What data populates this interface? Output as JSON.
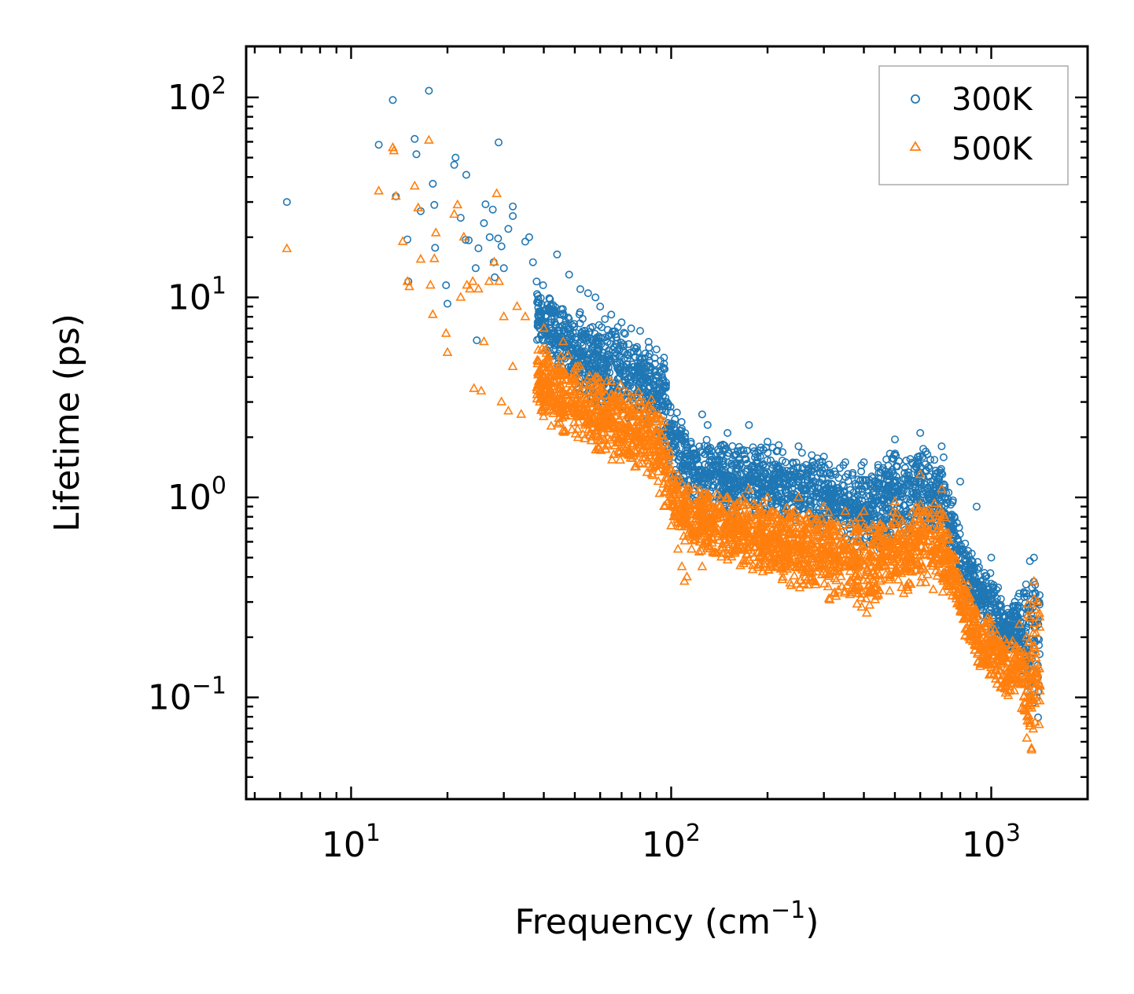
{
  "chart_data": {
    "type": "scatter",
    "title": "",
    "xlabel": "Frequency (cm",
    "xlabel_sup": "−1",
    "xlabel_close": ")",
    "ylabel": "Lifetime (ps)",
    "xscale": "log",
    "yscale": "log",
    "xlim": [
      4.7,
      2000
    ],
    "ylim": [
      0.031,
      180
    ],
    "grid": false,
    "legend_position": "top-right",
    "x_ticks": [
      {
        "value": 10,
        "base": "10",
        "exp": "1"
      },
      {
        "value": 100,
        "base": "10",
        "exp": "2"
      },
      {
        "value": 1000,
        "base": "10",
        "exp": "3"
      }
    ],
    "y_ticks": [
      {
        "value": 0.1,
        "base": "10",
        "exp": "−1"
      },
      {
        "value": 1,
        "base": "10",
        "exp": "0"
      },
      {
        "value": 10,
        "base": "10",
        "exp": "1"
      },
      {
        "value": 100,
        "base": "10",
        "exp": "2"
      }
    ],
    "series": [
      {
        "name": "300K",
        "marker": "circle",
        "color": "#1f77b4",
        "outliers": [
          [
            6.3,
            30
          ],
          [
            12.2,
            58
          ],
          [
            13.5,
            97
          ],
          [
            13.8,
            32
          ],
          [
            15,
            19.5
          ],
          [
            15.1,
            12
          ],
          [
            15.8,
            62
          ],
          [
            16,
            52
          ],
          [
            16.5,
            27
          ],
          [
            17.5,
            108
          ],
          [
            18,
            37
          ],
          [
            18.2,
            29
          ],
          [
            18.3,
            17.7
          ],
          [
            19.8,
            11.5
          ],
          [
            20,
            9.3
          ],
          [
            21,
            46
          ],
          [
            21.2,
            50
          ],
          [
            22,
            25
          ],
          [
            22.8,
            19.4
          ],
          [
            22.9,
            41
          ],
          [
            23.3,
            19.3
          ],
          [
            24.5,
            14
          ],
          [
            24.7,
            6.1
          ],
          [
            25,
            17.6
          ],
          [
            26,
            23.5
          ],
          [
            26.3,
            29.2
          ],
          [
            27.1,
            20
          ],
          [
            27.7,
            27.5
          ],
          [
            27.9,
            15
          ],
          [
            28.1,
            12.6
          ],
          [
            28.8,
            19.7
          ],
          [
            28.9,
            59.6
          ],
          [
            29.5,
            18
          ],
          [
            30,
            14
          ],
          [
            31,
            22
          ],
          [
            32,
            28.5
          ],
          [
            32,
            25.5
          ],
          [
            35,
            19
          ],
          [
            36,
            20
          ],
          [
            37,
            15
          ],
          [
            38,
            12
          ],
          [
            39.8,
            11.5
          ],
          [
            44,
            16.4
          ],
          [
            48,
            13
          ],
          [
            52,
            11
          ],
          [
            55,
            10.5
          ],
          [
            58,
            10
          ],
          [
            60,
            9
          ],
          [
            65,
            8.2
          ],
          [
            70,
            7.5
          ],
          [
            75,
            7
          ],
          [
            80,
            6.8
          ],
          [
            85,
            6
          ],
          [
            90,
            5.5
          ],
          [
            95,
            5
          ],
          [
            125,
            2.6
          ],
          [
            130,
            2.3
          ],
          [
            150,
            2.1
          ],
          [
            175,
            2.3
          ],
          [
            200,
            1.9
          ],
          [
            250,
            1.8
          ],
          [
            300,
            1.6
          ],
          [
            350,
            1.5
          ],
          [
            400,
            1.5
          ],
          [
            500,
            1.95
          ],
          [
            600,
            2.1
          ],
          [
            700,
            1.8
          ],
          [
            800,
            1.2
          ],
          [
            900,
            0.9
          ],
          [
            1000,
            0.5
          ],
          [
            1320,
            0.48
          ],
          [
            1360,
            0.5
          ],
          [
            1400,
            0.3
          ]
        ],
        "envelope": [
          [
            38,
            6,
            12
          ],
          [
            45,
            4,
            10
          ],
          [
            55,
            2.8,
            8.5
          ],
          [
            65,
            2.5,
            7.8
          ],
          [
            75,
            2.4,
            7
          ],
          [
            85,
            2.2,
            6
          ],
          [
            95,
            1.6,
            5
          ],
          [
            100,
            1.3,
            3.5
          ],
          [
            110,
            0.9,
            2.2
          ],
          [
            130,
            0.8,
            2.1
          ],
          [
            160,
            0.75,
            2
          ],
          [
            200,
            0.75,
            1.9
          ],
          [
            250,
            0.75,
            1.8
          ],
          [
            300,
            0.65,
            1.6
          ],
          [
            350,
            0.6,
            1.5
          ],
          [
            400,
            0.45,
            1.5
          ],
          [
            450,
            0.55,
            1.6
          ],
          [
            500,
            0.6,
            1.8
          ],
          [
            550,
            0.6,
            1.6
          ],
          [
            600,
            0.7,
            2.1
          ],
          [
            650,
            0.6,
            1.7
          ],
          [
            700,
            0.55,
            1.8
          ],
          [
            760,
            0.45,
            1
          ],
          [
            800,
            0.35,
            0.7
          ],
          [
            900,
            0.25,
            0.5
          ],
          [
            1000,
            0.2,
            0.45
          ],
          [
            1100,
            0.16,
            0.3
          ],
          [
            1180,
            0.18,
            0.31
          ],
          [
            1300,
            0.07,
            0.46
          ],
          [
            1380,
            0.075,
            0.48
          ],
          [
            1420,
            0.07,
            0.4
          ]
        ]
      },
      {
        "name": "500K",
        "marker": "triangle",
        "color": "#ff7f0e",
        "outliers": [
          [
            6.3,
            17.5
          ],
          [
            12.2,
            34
          ],
          [
            13.5,
            56
          ],
          [
            13.6,
            54
          ],
          [
            13.8,
            32
          ],
          [
            14.5,
            19
          ],
          [
            15,
            12
          ],
          [
            15.2,
            11.3
          ],
          [
            15.8,
            36
          ],
          [
            16.2,
            28
          ],
          [
            16.5,
            15.5
          ],
          [
            17.5,
            61
          ],
          [
            17.7,
            11.5
          ],
          [
            18,
            8.2
          ],
          [
            18.2,
            15.6
          ],
          [
            18.4,
            21
          ],
          [
            19.8,
            6.6
          ],
          [
            20,
            5.3
          ],
          [
            21,
            26
          ],
          [
            21.5,
            29
          ],
          [
            22,
            10
          ],
          [
            22.5,
            20
          ],
          [
            23,
            11.5
          ],
          [
            23.5,
            11
          ],
          [
            24,
            12
          ],
          [
            24.2,
            3.5
          ],
          [
            25,
            11
          ],
          [
            25.5,
            3.4
          ],
          [
            26,
            6
          ],
          [
            27,
            12
          ],
          [
            28,
            15
          ],
          [
            28.5,
            33
          ],
          [
            29,
            12
          ],
          [
            29.5,
            3
          ],
          [
            30,
            8
          ],
          [
            31,
            2.7
          ],
          [
            32,
            4.5
          ],
          [
            33,
            9
          ],
          [
            34,
            2.6
          ],
          [
            35,
            8
          ],
          [
            40,
            7
          ],
          [
            46,
            6
          ],
          [
            52,
            4.5
          ],
          [
            58,
            4
          ],
          [
            63,
            3.8
          ],
          [
            68,
            3.4
          ],
          [
            75,
            3.2
          ],
          [
            82,
            3
          ],
          [
            90,
            2.4
          ],
          [
            95,
            0.9
          ],
          [
            100,
            0.72
          ],
          [
            105,
            0.55
          ],
          [
            108,
            0.45
          ],
          [
            110,
            0.38
          ],
          [
            112,
            0.4
          ],
          [
            125,
            0.45
          ],
          [
            150,
            1
          ],
          [
            175,
            1.1
          ],
          [
            200,
            1
          ],
          [
            250,
            1
          ],
          [
            300,
            0.9
          ],
          [
            350,
            0.85
          ],
          [
            400,
            0.85
          ],
          [
            500,
            0.95
          ],
          [
            600,
            1.3
          ],
          [
            700,
            1.1
          ],
          [
            1360,
            0.38
          ]
        ],
        "envelope": [
          [
            38,
            2.5,
            6
          ],
          [
            45,
            2,
            5.5
          ],
          [
            55,
            1.6,
            4.5
          ],
          [
            65,
            1.4,
            4
          ],
          [
            75,
            1.3,
            3.8
          ],
          [
            85,
            1.2,
            3.3
          ],
          [
            95,
            0.9,
            2.6
          ],
          [
            100,
            0.7,
            1.6
          ],
          [
            110,
            0.55,
            1.2
          ],
          [
            130,
            0.5,
            1.1
          ],
          [
            160,
            0.45,
            1.05
          ],
          [
            200,
            0.4,
            1
          ],
          [
            250,
            0.33,
            0.95
          ],
          [
            300,
            0.3,
            0.9
          ],
          [
            350,
            0.3,
            0.85
          ],
          [
            400,
            0.24,
            0.8
          ],
          [
            450,
            0.3,
            0.85
          ],
          [
            500,
            0.35,
            0.95
          ],
          [
            550,
            0.3,
            0.8
          ],
          [
            600,
            0.35,
            1.2
          ],
          [
            650,
            0.32,
            1
          ],
          [
            700,
            0.3,
            1
          ],
          [
            760,
            0.28,
            0.6
          ],
          [
            800,
            0.22,
            0.45
          ],
          [
            900,
            0.14,
            0.3
          ],
          [
            1000,
            0.11,
            0.26
          ],
          [
            1100,
            0.1,
            0.22
          ],
          [
            1180,
            0.1,
            0.2
          ],
          [
            1300,
            0.048,
            0.3
          ],
          [
            1380,
            0.05,
            0.38
          ],
          [
            1420,
            0.05,
            0.3
          ]
        ]
      }
    ]
  }
}
